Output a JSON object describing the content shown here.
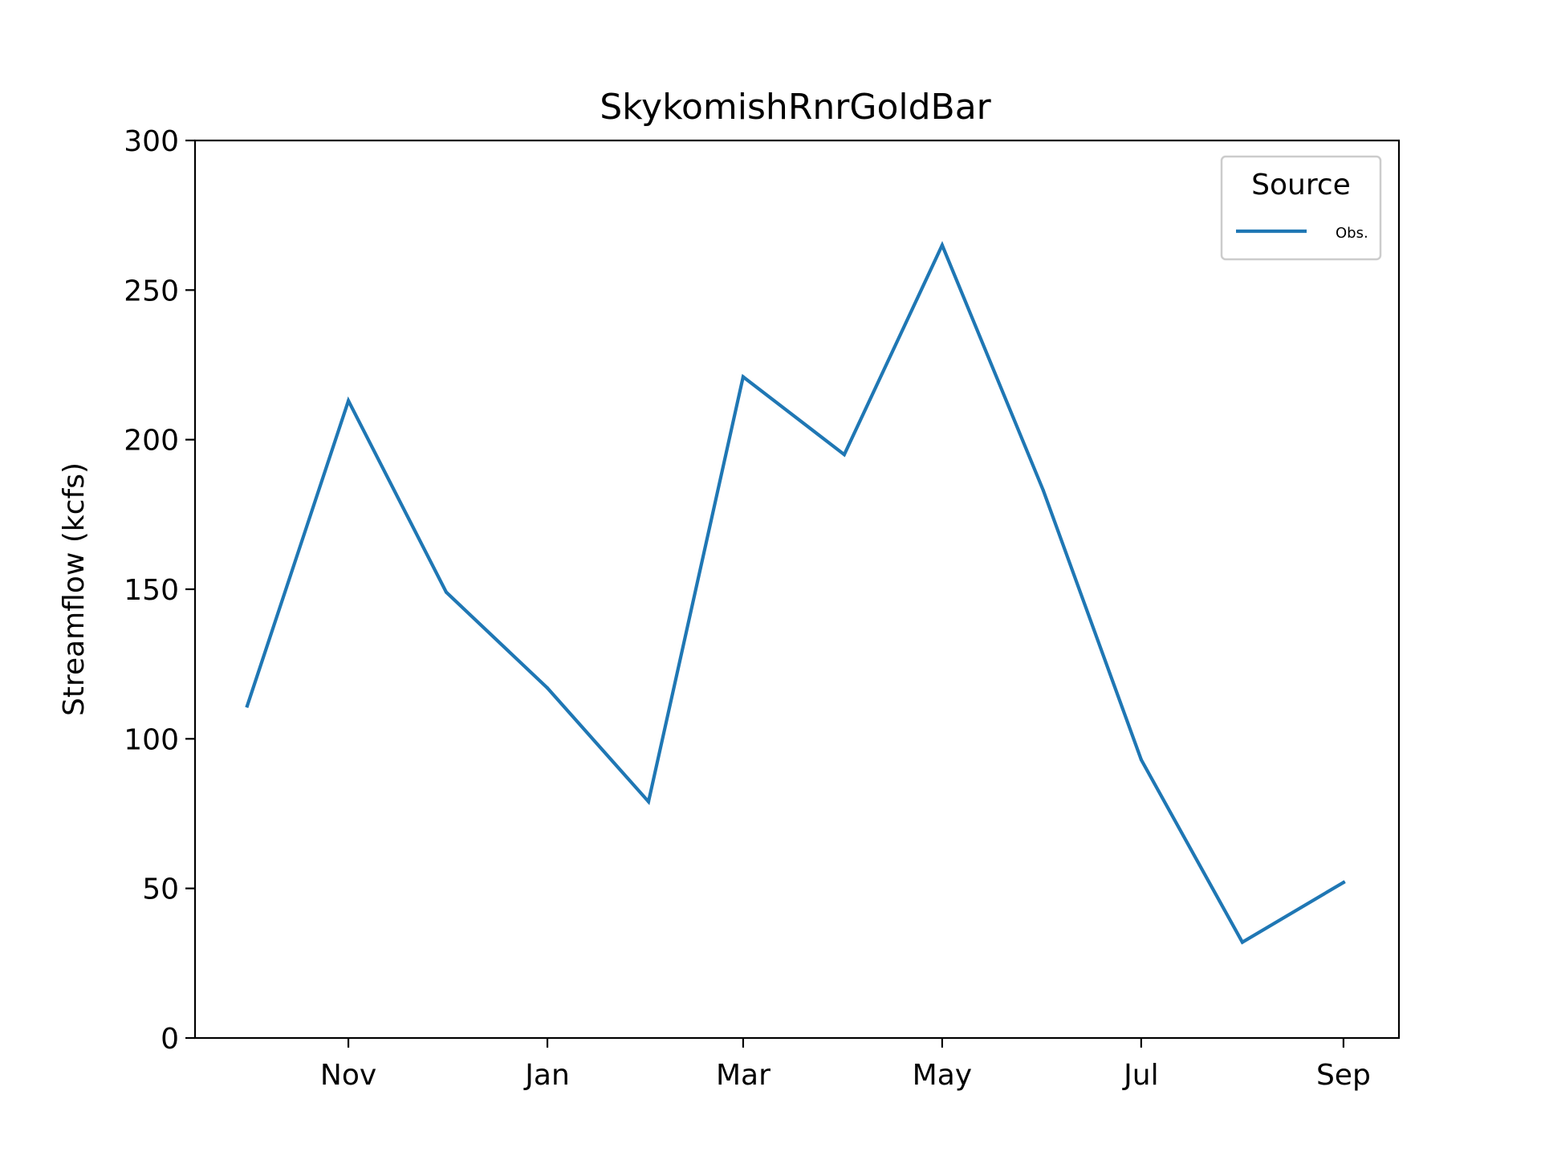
{
  "chart_data": {
    "type": "line",
    "title": "SkykomishRnrGoldBar",
    "xlabel": "",
    "ylabel": "Streamflow (kcfs)",
    "x": [
      "2023-10-01",
      "2023-11-01",
      "2023-12-01",
      "2024-01-01",
      "2024-02-01",
      "2024-03-01",
      "2024-04-01",
      "2024-05-01",
      "2024-06-01",
      "2024-07-01",
      "2024-08-01",
      "2024-09-01"
    ],
    "x_ticks": [
      {
        "date": "2023-11-01",
        "label": "Nov"
      },
      {
        "date": "2024-01-01",
        "label": "Jan"
      },
      {
        "date": "2024-03-01",
        "label": "Mar"
      },
      {
        "date": "2024-05-01",
        "label": "May"
      },
      {
        "date": "2024-07-01",
        "label": "Jul"
      },
      {
        "date": "2024-09-01",
        "label": "Sep"
      }
    ],
    "xlim": [
      "2023-09-15",
      "2024-09-18"
    ],
    "ylim": [
      0,
      300
    ],
    "y_ticks": [
      0,
      50,
      100,
      150,
      200,
      250,
      300
    ],
    "series": [
      {
        "name": "Obs.",
        "color": "#1f77b4",
        "values": [
          111,
          213,
          149,
          117,
          79,
          221,
          195,
          265,
          183,
          93,
          32,
          52
        ]
      }
    ],
    "legend": {
      "title": "Source",
      "position": "top-right"
    },
    "grid": false
  }
}
